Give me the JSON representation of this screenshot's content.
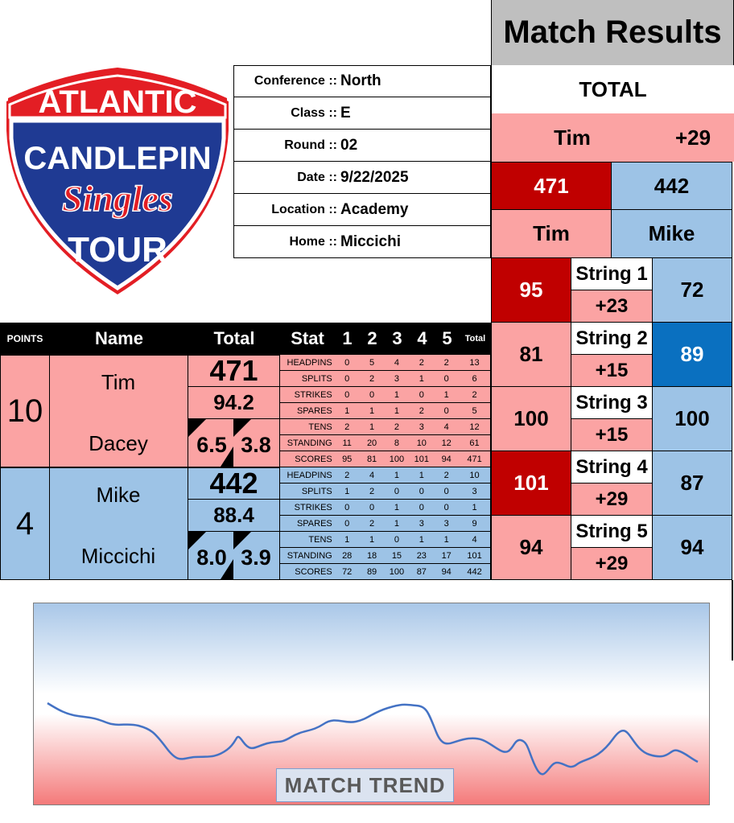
{
  "logo": {
    "line1": "ATLANTIC",
    "line2": "CANDLEPIN",
    "line3": "Singles",
    "line4": "TOUR"
  },
  "info": [
    {
      "label": "Conference ::",
      "value": "North"
    },
    {
      "label": "Class ::",
      "value": "E"
    },
    {
      "label": "Round ::",
      "value": "02"
    },
    {
      "label": "Date ::",
      "value": "9/22/2025"
    },
    {
      "label": "Location ::",
      "value": "Academy"
    },
    {
      "label": "Home ::",
      "value": "Miccichi"
    }
  ],
  "results": {
    "title": "Match Results",
    "total_label": "TOTAL",
    "leader": "Tim",
    "margin": "+29",
    "p1_total": "471",
    "p2_total": "442",
    "p1_name": "Tim",
    "p2_name": "Mike",
    "strings": [
      {
        "label": "String 1",
        "p1": "95",
        "p2": "72",
        "diff": "+23"
      },
      {
        "label": "String 2",
        "p1": "81",
        "p2": "89",
        "diff": "+15"
      },
      {
        "label": "String 3",
        "p1": "100",
        "p2": "100",
        "diff": "+15"
      },
      {
        "label": "String 4",
        "p1": "101",
        "p2": "87",
        "diff": "+29"
      },
      {
        "label": "String 5",
        "p1": "94",
        "p2": "94",
        "diff": "+29"
      }
    ]
  },
  "table": {
    "headers": {
      "points": "POINTS",
      "name": "Name",
      "total": "Total",
      "stat": "Stat",
      "g1": "1",
      "g2": "2",
      "g3": "3",
      "g4": "4",
      "g5": "5",
      "gt": "Total"
    },
    "players": [
      {
        "points": "10",
        "first": "Tim",
        "last": "Dacey",
        "total": "471",
        "avg": "94.2",
        "s1": "6.5",
        "s2": "3.8",
        "stats": [
          {
            "label": "HEADPINS",
            "v": [
              "0",
              "5",
              "4",
              "2",
              "2"
            ],
            "t": "13"
          },
          {
            "label": "SPLITS",
            "v": [
              "0",
              "2",
              "3",
              "1",
              "0"
            ],
            "t": "6"
          },
          {
            "label": "STRIKES",
            "v": [
              "0",
              "0",
              "1",
              "0",
              "1"
            ],
            "t": "2"
          },
          {
            "label": "SPARES",
            "v": [
              "1",
              "1",
              "1",
              "2",
              "0"
            ],
            "t": "5"
          },
          {
            "label": "TENS",
            "v": [
              "2",
              "1",
              "2",
              "3",
              "4"
            ],
            "t": "12"
          },
          {
            "label": "STANDING",
            "v": [
              "11",
              "20",
              "8",
              "10",
              "12"
            ],
            "t": "61"
          },
          {
            "label": "SCORES",
            "v": [
              "95",
              "81",
              "100",
              "101",
              "94"
            ],
            "t": "471"
          }
        ]
      },
      {
        "points": "4",
        "first": "Mike",
        "last": "Miccichi",
        "total": "442",
        "avg": "88.4",
        "s1": "8.0",
        "s2": "3.9",
        "stats": [
          {
            "label": "HEADPINS",
            "v": [
              "2",
              "4",
              "1",
              "1",
              "2"
            ],
            "t": "10"
          },
          {
            "label": "SPLITS",
            "v": [
              "1",
              "2",
              "0",
              "0",
              "0"
            ],
            "t": "3"
          },
          {
            "label": "STRIKES",
            "v": [
              "0",
              "0",
              "1",
              "0",
              "0"
            ],
            "t": "1"
          },
          {
            "label": "SPARES",
            "v": [
              "0",
              "2",
              "1",
              "3",
              "3"
            ],
            "t": "9"
          },
          {
            "label": "TENS",
            "v": [
              "1",
              "1",
              "0",
              "1",
              "1"
            ],
            "t": "4"
          },
          {
            "label": "STANDING",
            "v": [
              "28",
              "18",
              "15",
              "23",
              "17"
            ],
            "t": "101"
          },
          {
            "label": "SCORES",
            "v": [
              "72",
              "89",
              "100",
              "87",
              "94"
            ],
            "t": "442"
          }
        ]
      }
    ]
  },
  "trend": {
    "label": "MATCH TREND",
    "line_color": "#4472c4"
  }
}
